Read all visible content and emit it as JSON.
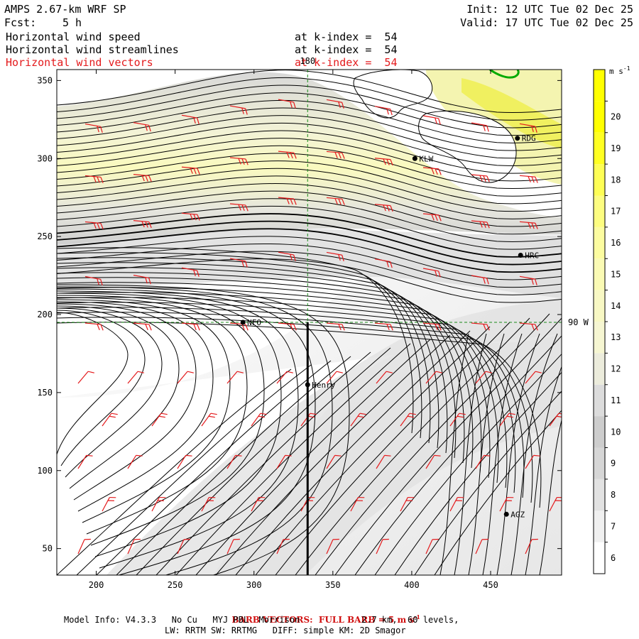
{
  "header": {
    "model": "AMPS 2.67-km WRF SP",
    "fcst_label": "Fcst:",
    "fcst_value": "5 h",
    "init": "Init: 12 UTC Tue 02 Dec 25",
    "valid": "Valid: 17 UTC Tue 02 Dec 25",
    "fields": [
      {
        "name": "Horizontal wind speed",
        "level": "at k-index =  54",
        "color": "#000000"
      },
      {
        "name": "Horizontal wind streamlines",
        "level": "at k-index =  54",
        "color": "#000000"
      },
      {
        "name": "Horizontal wind vectors",
        "level": "at k-index =  54",
        "color": "#e41a1c"
      }
    ]
  },
  "map": {
    "x_range": [
      175,
      495
    ],
    "y_range": [
      33,
      357
    ],
    "x_ticks": [
      200,
      250,
      300,
      350,
      400,
      450
    ],
    "y_ticks": [
      50,
      100,
      150,
      200,
      250,
      300,
      350
    ],
    "meridian_label": "180",
    "meridian_x": 334,
    "parallel_label": "90 W",
    "parallel_y": 195,
    "stations": [
      {
        "name": "NFO",
        "x": 293,
        "y": 195
      },
      {
        "name": "Henry",
        "x": 334,
        "y": 155
      },
      {
        "name": "KLW",
        "x": 402,
        "y": 300
      },
      {
        "name": "RDG",
        "x": 467,
        "y": 313
      },
      {
        "name": "HRC",
        "x": 469,
        "y": 238
      },
      {
        "name": "AGZ",
        "x": 460,
        "y": 72
      }
    ]
  },
  "colorbar": {
    "unit": "m s",
    "unit_sup": "-1",
    "levels": [
      6,
      7,
      8,
      9,
      10,
      11,
      12,
      13,
      14,
      15,
      16,
      17,
      18,
      19,
      20
    ],
    "colors": [
      "#ffffff",
      "#f0f0f0",
      "#e2e2e2",
      "#d6d6d6",
      "#cdcdcd",
      "#dcdcdc",
      "#ececdc",
      "#f6f6d2",
      "#f8f8c4",
      "#fafab4",
      "#fcfca0",
      "#fdfd80",
      "#fefe55",
      "#ffff22",
      "#ffff00"
    ]
  },
  "footer": {
    "barb_note": "BARB VECTORS:  FULL BARB = 5 m s",
    "barb_sup": "-1",
    "model_info": "Model Info: V4.3.3   No Cu   MYJ PBL  Morrison            2.7 km,  60 levels,",
    "physics": "LW: RRTM SW: RRTMG   DIFF: simple KM: 2D Smagor"
  }
}
